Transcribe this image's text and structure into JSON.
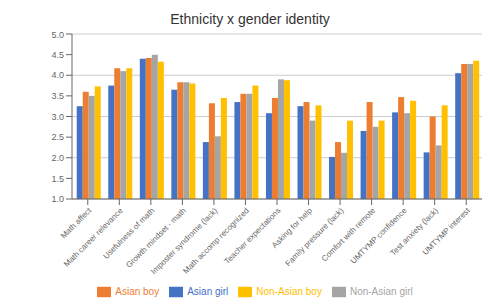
{
  "chart_data": {
    "type": "bar",
    "title": "Ethnicity x gender identity",
    "categories": [
      "Math affect",
      "Math career relevance",
      "Usefulness of math",
      "Growth mindset - math",
      "Imposter syndrome (lack)",
      "Math accomp recognized",
      "Teacher expectations",
      "Asking for help",
      "Family pressure (lack)",
      "Comfort with remote",
      "UMTYMP confidence",
      "Test anxiety (lack)",
      "UMTYMP interest"
    ],
    "series": [
      {
        "name": "Asian girl",
        "color": "#4472c4",
        "values": [
          3.25,
          3.75,
          4.4,
          3.65,
          2.38,
          3.35,
          3.08,
          3.25,
          2.02,
          2.65,
          3.1,
          2.13,
          4.05
        ]
      },
      {
        "name": "Asian boy",
        "color": "#ed7d31",
        "values": [
          3.6,
          4.17,
          4.42,
          3.83,
          3.32,
          3.55,
          3.45,
          3.35,
          2.38,
          3.35,
          3.47,
          3.0,
          4.27
        ]
      },
      {
        "name": "Non-Asian girl",
        "color": "#a5a5a5",
        "values": [
          3.5,
          4.1,
          4.5,
          3.83,
          2.52,
          3.55,
          3.9,
          2.9,
          2.12,
          2.75,
          3.08,
          2.3,
          4.27
        ]
      },
      {
        "name": "Non-Asian boy",
        "color": "#ffc000",
        "values": [
          3.73,
          4.17,
          4.33,
          3.8,
          3.45,
          3.75,
          3.88,
          3.27,
          2.9,
          2.9,
          3.38,
          3.27,
          4.35
        ]
      }
    ],
    "ylim": [
      1,
      5
    ],
    "yticks": [
      {
        "value": 1,
        "label": "1.0"
      },
      1.5,
      {
        "value": 2,
        "label": "2.0"
      },
      2.5,
      {
        "value": 3,
        "label": "3.0"
      },
      3.5,
      {
        "value": 4,
        "label": "4.0"
      },
      4.5,
      {
        "value": 5,
        "label": "5.0"
      }
    ],
    "grid": true,
    "legend": "bottom"
  }
}
